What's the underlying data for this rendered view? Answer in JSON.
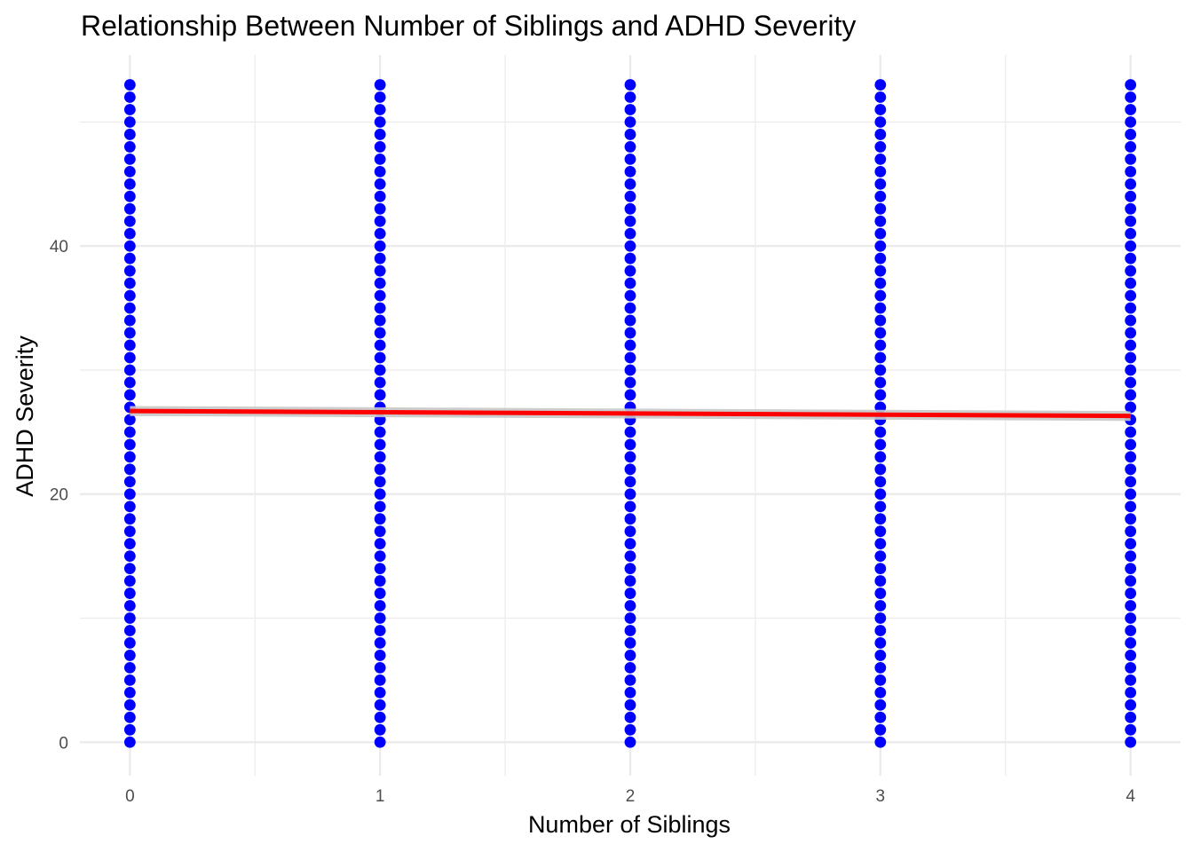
{
  "chart_data": {
    "type": "scatter",
    "title": "Relationship Between Number of Siblings and ADHD Severity",
    "xlabel": "Number of Siblings",
    "ylabel": "ADHD Severity",
    "xlim": [
      -0.2,
      4.2
    ],
    "ylim": [
      -2.7,
      55.4
    ],
    "x_ticks": [
      0,
      1,
      2,
      3,
      4
    ],
    "x_tick_labels": [
      "0",
      "1",
      "2",
      "3",
      "4"
    ],
    "x_minor_ticks": [
      0.5,
      1.5,
      2.5,
      3.5
    ],
    "y_ticks": [
      0,
      20,
      40
    ],
    "y_tick_labels": [
      "0",
      "20",
      "40"
    ],
    "y_minor_ticks": [
      10,
      30,
      50
    ],
    "grid": true,
    "point_color": "#0000ff",
    "series": [
      {
        "x_values": [
          0,
          1,
          2,
          3,
          4
        ],
        "y_values_per_x": "integers 0 to 53 inclusive",
        "y_min": 0,
        "y_max": 53,
        "y_step": 1
      }
    ],
    "trend_line": {
      "method": "linear regression",
      "color": "#ff0000",
      "band_color": "#c8c8c8",
      "x": [
        0,
        4
      ],
      "y": [
        26.7,
        26.3
      ],
      "band_halfwidth": 0.4
    }
  }
}
